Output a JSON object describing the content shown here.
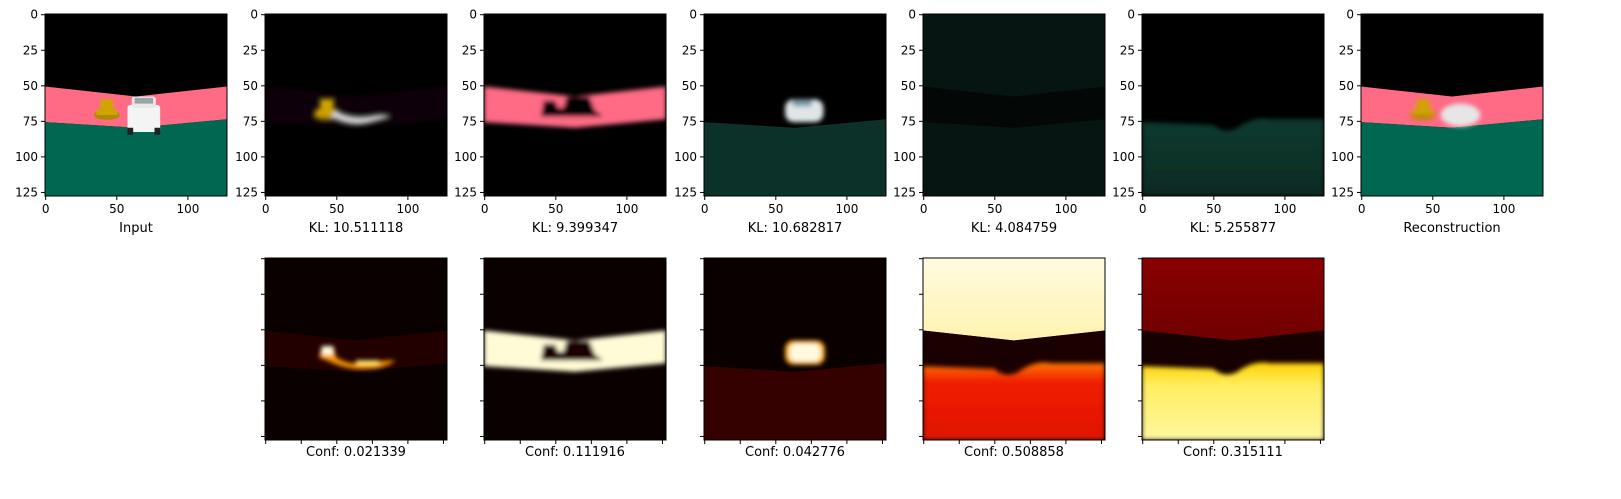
{
  "chart_data": {
    "type": "image-grid",
    "image_size": [
      128,
      128
    ],
    "axis_ticks": [
      "0",
      "25",
      "50",
      "75",
      "100",
      "125"
    ],
    "x_tick_labels": [
      "0",
      "50",
      "100"
    ],
    "colors": {
      "sky": "#000000",
      "road": "#ff6a85",
      "grass": "#006751",
      "car": "#f4f4f4",
      "cone": "#d1a400",
      "spine": "#000000"
    },
    "heatmap_colormap": "hot",
    "reconstructions": [
      {
        "name": "input",
        "caption": "Input",
        "kind": "input"
      },
      {
        "name": "component-1",
        "caption": "KL: 10.511118",
        "kl": 10.511118,
        "kind": "objects"
      },
      {
        "name": "component-2",
        "caption": "KL: 9.399347",
        "kl": 9.399347,
        "kind": "road"
      },
      {
        "name": "component-3",
        "caption": "KL: 10.682817",
        "kl": 10.682817,
        "kind": "car"
      },
      {
        "name": "component-4",
        "caption": "KL: 4.084759",
        "kl": 4.084759,
        "kind": "dark"
      },
      {
        "name": "component-5",
        "caption": "KL: 5.255877",
        "kl": 5.255877,
        "kind": "ground"
      },
      {
        "name": "reconstruction",
        "caption": "Reconstruction",
        "kind": "reconstruction"
      }
    ],
    "confidence_maps": [
      {
        "name": "component-1",
        "caption": "Conf: 0.021339",
        "conf": 0.021339,
        "kind": "objects"
      },
      {
        "name": "component-2",
        "caption": "Conf: 0.111916",
        "conf": 0.111916,
        "kind": "road"
      },
      {
        "name": "component-3",
        "caption": "Conf: 0.042776",
        "conf": 0.042776,
        "kind": "car"
      },
      {
        "name": "component-4",
        "caption": "Conf: 0.508858",
        "conf": 0.508858,
        "kind": "sky-ground"
      },
      {
        "name": "component-5",
        "caption": "Conf: 0.315111",
        "conf": 0.315111,
        "kind": "ground"
      }
    ]
  }
}
